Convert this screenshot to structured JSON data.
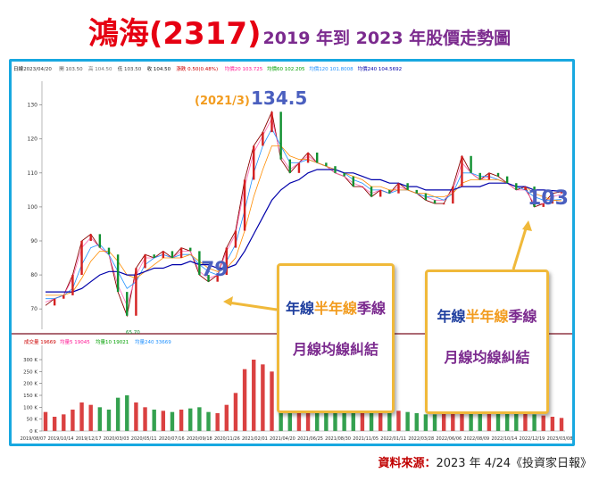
{
  "title": {
    "main": "鴻海(2317)",
    "sub": "2019 年到 2023 年股價走勢圖"
  },
  "source": {
    "label": "資料來源：",
    "text": "2023 年 4/24《投資家日報》"
  },
  "colors": {
    "accent_blue": "#18a8e0",
    "callout_border": "#f0b93a",
    "title_red": "#e60012",
    "title_purple": "#7b2a8e",
    "ma_month": "#ff69b4",
    "ma_quarter": "#1e90ff",
    "ma_half": "#ff8c00",
    "ma_year": "#0000aa"
  },
  "info_bar": {
    "items": [
      "日線",
      "2023/04/20",
      "開 103.50",
      "高 104.50",
      "低 103.50",
      "收 104.50",
      "漲跌 0.50(0.48%)",
      "均價20 103.725",
      "均價60 102.205",
      "均價120 101.8008",
      "均價240 104.5692"
    ]
  },
  "volume_bar": {
    "items": [
      "成交量 19669",
      "均量5 19045",
      "均量10 19021",
      "均量240 33669"
    ]
  },
  "callouts": [
    {
      "line1": [
        "年線",
        "半年線",
        "季線"
      ],
      "line2": "月線均線糾結"
    },
    {
      "line1": [
        "年線",
        "半年線",
        "季線"
      ],
      "line2": "月線均線糾結"
    }
  ],
  "annotations": {
    "peak_date": "(2021/3)",
    "peak_value": "134.5",
    "low_value": "79",
    "last_value": "103",
    "min_label": "65.70"
  },
  "chart_data": {
    "type": "line",
    "title": "",
    "xlabel": "",
    "ylabel": "",
    "ylim": [
      64,
      137
    ],
    "y_ticks": [
      70,
      80,
      90,
      100,
      110,
      120,
      130
    ],
    "volume_ylim": [
      0,
      330
    ],
    "volume_ticks": [
      "300 K",
      "250 K",
      "200 K",
      "150 K",
      "100 K",
      "50 K",
      "0 K"
    ],
    "x_labels": [
      "2019/08/07",
      "2019/10/14",
      "2019/12/17",
      "2020/03/03",
      "2020/05/11",
      "2020/07/16",
      "2020/09/18",
      "2020/11/26",
      "2021/02/01",
      "2021/04/20",
      "2021/06/25",
      "2021/08/30",
      "2021/11/05",
      "2022/01/11",
      "2022/03/28",
      "2022/06/06",
      "2022/08/09",
      "2022/10/14",
      "2022/12/19",
      "2023/03/08"
    ],
    "series": [
      {
        "name": "收盤",
        "values": [
          71,
          73,
          74,
          80,
          90,
          92,
          88,
          86,
          75,
          68,
          82,
          86,
          85,
          87,
          85,
          88,
          87,
          80,
          78,
          80,
          88,
          93,
          108,
          118,
          122,
          128,
          114,
          110,
          113,
          116,
          113,
          112,
          110,
          109,
          106,
          106,
          103,
          105,
          104,
          107,
          105,
          104,
          102,
          101,
          101,
          106,
          115,
          110,
          108,
          110,
          109,
          107,
          105,
          106,
          100,
          101,
          104,
          104.5
        ]
      },
      {
        "name": "均價20",
        "values": [
          72,
          73,
          74,
          79,
          88,
          91,
          88,
          86,
          77,
          71,
          80,
          85,
          85,
          86,
          85,
          87,
          87,
          81,
          79,
          80,
          87,
          92,
          106,
          116,
          121,
          126,
          115,
          111,
          113,
          115,
          113,
          112,
          110,
          109,
          107,
          106,
          104,
          105,
          104,
          106,
          105,
          104,
          103,
          102,
          102,
          105,
          113,
          110,
          108,
          109,
          108,
          107,
          105,
          105,
          101,
          101,
          103,
          103.7
        ]
      },
      {
        "name": "均價60",
        "values": [
          73,
          73,
          74,
          76,
          83,
          88,
          89,
          86,
          81,
          76,
          78,
          83,
          85,
          86,
          85,
          86,
          86,
          83,
          81,
          80,
          84,
          89,
          99,
          110,
          118,
          123,
          118,
          113,
          113,
          114,
          113,
          112,
          111,
          110,
          108,
          107,
          105,
          105,
          104,
          105,
          105,
          104,
          103,
          103,
          102,
          104,
          110,
          110,
          109,
          109,
          108,
          107,
          106,
          105,
          103,
          102,
          102,
          102.2
        ]
      },
      {
        "name": "均價120",
        "values": [
          74,
          74,
          74,
          75,
          79,
          84,
          87,
          87,
          84,
          80,
          79,
          81,
          83,
          85,
          85,
          85,
          86,
          84,
          82,
          81,
          82,
          85,
          93,
          103,
          111,
          118,
          118,
          115,
          114,
          114,
          113,
          112,
          111,
          110,
          109,
          108,
          106,
          106,
          105,
          105,
          105,
          104,
          104,
          103,
          103,
          104,
          107,
          108,
          108,
          108,
          108,
          107,
          106,
          106,
          104,
          103,
          102,
          101.8
        ]
      },
      {
        "name": "均價240",
        "values": [
          75,
          75,
          75,
          75,
          76,
          78,
          80,
          81,
          81,
          80,
          80,
          81,
          82,
          82,
          83,
          83,
          84,
          83,
          83,
          82,
          82,
          83,
          87,
          92,
          97,
          102,
          105,
          107,
          108,
          110,
          111,
          111,
          111,
          110,
          110,
          109,
          108,
          108,
          107,
          107,
          106,
          106,
          105,
          105,
          105,
          105,
          106,
          106,
          106,
          107,
          107,
          107,
          106,
          106,
          105,
          105,
          104.8,
          104.6
        ]
      }
    ],
    "volume": [
      80,
      60,
      70,
      90,
      120,
      110,
      100,
      90,
      140,
      150,
      120,
      100,
      90,
      85,
      80,
      90,
      95,
      100,
      80,
      75,
      110,
      160,
      260,
      300,
      280,
      250,
      200,
      180,
      150,
      140,
      130,
      120,
      100,
      95,
      90,
      85,
      80,
      80,
      75,
      85,
      80,
      75,
      70,
      70,
      72,
      90,
      150,
      120,
      100,
      95,
      90,
      85,
      80,
      80,
      70,
      65,
      60,
      55
    ]
  }
}
